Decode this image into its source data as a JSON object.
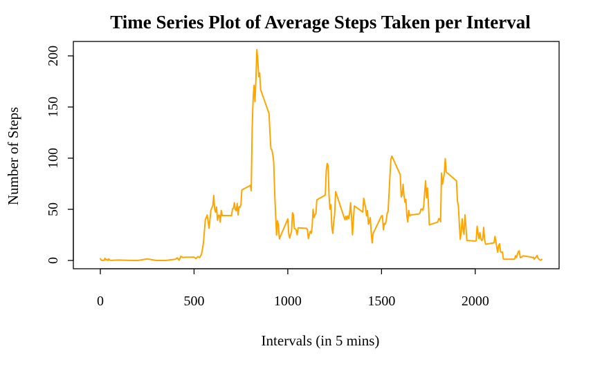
{
  "chart_data": {
    "type": "line",
    "title": "Time Series Plot of Average Steps Taken per Interval",
    "xlabel": "Intervals (in 5 mins)",
    "ylabel": "Number of Steps",
    "xlim": [
      0,
      2355
    ],
    "ylim": [
      0,
      206
    ],
    "xticks": [
      0,
      500,
      1000,
      1500,
      2000
    ],
    "yticks": [
      0,
      50,
      100,
      150,
      200
    ],
    "xtick_labels": [
      "0",
      "500",
      "1000",
      "1500",
      "2000"
    ],
    "ytick_labels": [
      "0",
      "50",
      "100",
      "150",
      "200"
    ],
    "grid": false,
    "color": "#FFA500",
    "series": [
      {
        "x": [
          0,
          5,
          10,
          15,
          20,
          25,
          30,
          35,
          40,
          45,
          50,
          55,
          100,
          150,
          200,
          250,
          300,
          350,
          400,
          410,
          420,
          430,
          440,
          450,
          500,
          510,
          520,
          530,
          540,
          550,
          560,
          570,
          580,
          590,
          600,
          605,
          610,
          615,
          620,
          625,
          630,
          635,
          640,
          645,
          650,
          655,
          700,
          705,
          710,
          715,
          720,
          725,
          730,
          735,
          740,
          745,
          750,
          755,
          800,
          805,
          810,
          815,
          820,
          825,
          830,
          835,
          840,
          845,
          850,
          855,
          900,
          905,
          910,
          915,
          920,
          925,
          930,
          935,
          940,
          945,
          950,
          955,
          1000,
          1005,
          1010,
          1015,
          1020,
          1025,
          1030,
          1035,
          1040,
          1045,
          1050,
          1055,
          1100,
          1105,
          1110,
          1115,
          1120,
          1125,
          1130,
          1135,
          1140,
          1145,
          1150,
          1155,
          1200,
          1205,
          1210,
          1215,
          1220,
          1225,
          1230,
          1235,
          1240,
          1245,
          1250,
          1255,
          1300,
          1305,
          1310,
          1315,
          1320,
          1325,
          1330,
          1335,
          1340,
          1345,
          1350,
          1355,
          1400,
          1405,
          1410,
          1415,
          1420,
          1425,
          1430,
          1435,
          1440,
          1445,
          1450,
          1455,
          1500,
          1505,
          1510,
          1515,
          1520,
          1525,
          1530,
          1535,
          1540,
          1545,
          1550,
          1555,
          1600,
          1605,
          1610,
          1615,
          1620,
          1625,
          1630,
          1635,
          1640,
          1645,
          1650,
          1655,
          1700,
          1705,
          1710,
          1715,
          1720,
          1725,
          1730,
          1735,
          1740,
          1745,
          1750,
          1755,
          1800,
          1805,
          1810,
          1815,
          1820,
          1825,
          1830,
          1835,
          1840,
          1845,
          1850,
          1855,
          1900,
          1905,
          1910,
          1915,
          1920,
          1925,
          1930,
          1935,
          1940,
          1945,
          1950,
          1955,
          2000,
          2005,
          2010,
          2015,
          2020,
          2025,
          2030,
          2035,
          2040,
          2045,
          2050,
          2055,
          2100,
          2105,
          2110,
          2115,
          2120,
          2125,
          2130,
          2135,
          2140,
          2145,
          2150,
          2155,
          2200,
          2205,
          2210,
          2215,
          2220,
          2225,
          2230,
          2235,
          2240,
          2245,
          2250,
          2255,
          2300,
          2305,
          2310,
          2315,
          2320,
          2325,
          2330,
          2335,
          2340,
          2345,
          2350,
          2355
        ],
        "values": [
          1.7,
          0.3,
          0.1,
          0.2,
          0.1,
          2.1,
          0.5,
          0.9,
          0,
          1.5,
          0.3,
          0.1,
          0.4,
          0.1,
          0,
          1.5,
          0,
          0,
          1.2,
          2.6,
          0.3,
          4.1,
          2.9,
          3.1,
          3.3,
          1.8,
          3.8,
          2.9,
          6.2,
          17.1,
          39.5,
          44.5,
          31.5,
          49.3,
          53.8,
          63.5,
          49.9,
          47.1,
          52.2,
          39.3,
          44.0,
          44.2,
          37.4,
          49.0,
          43.8,
          44.0,
          43.8,
          50.5,
          50.8,
          56.5,
          49.9,
          48.6,
          55.8,
          44.4,
          52.5,
          51.9,
          54.6,
          68.9,
          73.4,
          68.2,
          129.4,
          157.5,
          171.2,
          155.4,
          177.3,
          206.2,
          195.9,
          179.6,
          183.4,
          167.0,
          143.5,
          124.0,
          109.1,
          108.1,
          103.7,
          95.9,
          66.2,
          45.2,
          24.8,
          38.8,
          34.9,
          21.1,
          40.6,
          26.1,
          21.9,
          25.5,
          28.3,
          46.6,
          44.7,
          31.4,
          30.8,
          29.8,
          25.1,
          31.9,
          31.4,
          29.7,
          21.3,
          25.5,
          28.4,
          26.5,
          33.4,
          50.0,
          42.0,
          44.6,
          46.0,
          59.3,
          63.9,
          87.6,
          94.8,
          92.8,
          63.4,
          50.2,
          54.5,
          32.4,
          26.5,
          37.7,
          45.1,
          67.3,
          42.3,
          39.9,
          43.3,
          40.0,
          43.6,
          40.9,
          46.2,
          56.4,
          42.8,
          25.1,
          39.5,
          53.3,
          47.3,
          60.8,
          55.8,
          51.9,
          43.6,
          48.7,
          35.5,
          37.5,
          41.8,
          27.5,
          17.1,
          26.2,
          43.6,
          43.8,
          30.0,
          36.1,
          35.5,
          38.8,
          46.0,
          47.8,
          65.3,
          82.9,
          98.7,
          102.1,
          83.8,
          62.1,
          64.1,
          74.5,
          63.2,
          56.9,
          59.8,
          43.9,
          37.6,
          49.0,
          43.8,
          44.4,
          45.5,
          46.3,
          50.0,
          50.3,
          49.0,
          52.7,
          66.6,
          77.9,
          61.3,
          70.8,
          56.6,
          34.8,
          37.5,
          40.8,
          40.9,
          37.8,
          85.4,
          74.7,
          79.5,
          85.3,
          99.5,
          86.6,
          85.6,
          84.9,
          77.8,
          58.0,
          53.4,
          36.3,
          20.7,
          27.4,
          40.7,
          30.2,
          25.5,
          44.6,
          34.0,
          19.6,
          19.0,
          19.3,
          33.4,
          26.8,
          21.2,
          27.3,
          21.3,
          19.5,
          21.3,
          32.3,
          20.2,
          15.9,
          17.2,
          23.5,
          19.2,
          12.5,
          8.0,
          14.7,
          16.3,
          8.7,
          7.8,
          8.1,
          1.6,
          1.2,
          1.3,
          1.2,
          1.4,
          4.6,
          2.9,
          6.0,
          8.7,
          9.4,
          2.7,
          3.2,
          3.6,
          4.5,
          3.3,
          2.7,
          3.2,
          1.2,
          2.6,
          3.4,
          4.9,
          2.2,
          1.2,
          0.5,
          0.2,
          1.1
        ]
      }
    ]
  }
}
